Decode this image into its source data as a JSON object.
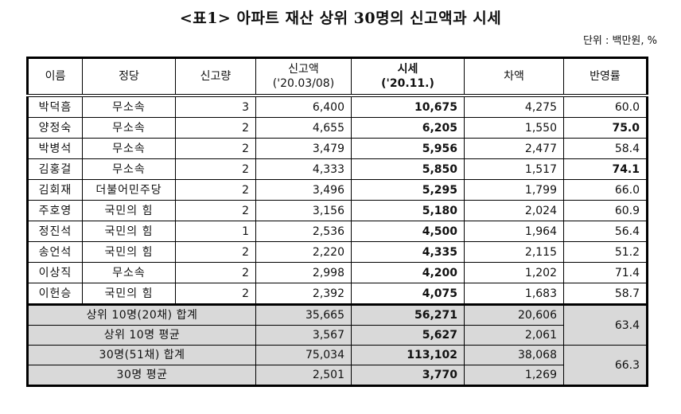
{
  "title": "<표1> 아파트 재산 상위 30명의 신고액과 시세",
  "unit": "단위 : 백만원, %",
  "table": {
    "headers": {
      "name": "이름",
      "party": "정당",
      "count": "신고량",
      "declared_line1": "신고액",
      "declared_line2": "('20.03/08)",
      "market_line1": "시세",
      "market_line2": "('20.11.)",
      "diff": "차액",
      "ratio": "반영률"
    },
    "rows": [
      {
        "name": "박덕흠",
        "party": "무소속",
        "count": "3",
        "declared": "6,400",
        "market": "10,675",
        "diff": "4,275",
        "ratio": "60.0",
        "ratio_bold": false
      },
      {
        "name": "양정숙",
        "party": "무소속",
        "count": "2",
        "declared": "4,655",
        "market": "6,205",
        "diff": "1,550",
        "ratio": "75.0",
        "ratio_bold": true
      },
      {
        "name": "박병석",
        "party": "무소속",
        "count": "2",
        "declared": "3,479",
        "market": "5,956",
        "diff": "2,477",
        "ratio": "58.4",
        "ratio_bold": false
      },
      {
        "name": "김홍걸",
        "party": "무소속",
        "count": "2",
        "declared": "4,333",
        "market": "5,850",
        "diff": "1,517",
        "ratio": "74.1",
        "ratio_bold": true
      },
      {
        "name": "김회재",
        "party": "더불어민주당",
        "count": "2",
        "declared": "3,496",
        "market": "5,295",
        "diff": "1,799",
        "ratio": "66.0",
        "ratio_bold": false
      },
      {
        "name": "주호영",
        "party": "국민의 힘",
        "count": "2",
        "declared": "3,156",
        "market": "5,180",
        "diff": "2,024",
        "ratio": "60.9",
        "ratio_bold": false
      },
      {
        "name": "정진석",
        "party": "국민의 힘",
        "count": "1",
        "declared": "2,536",
        "market": "4,500",
        "diff": "1,964",
        "ratio": "56.4",
        "ratio_bold": false
      },
      {
        "name": "송언석",
        "party": "국민의 힘",
        "count": "2",
        "declared": "2,220",
        "market": "4,335",
        "diff": "2,115",
        "ratio": "51.2",
        "ratio_bold": false
      },
      {
        "name": "이상직",
        "party": "무소속",
        "count": "2",
        "declared": "2,998",
        "market": "4,200",
        "diff": "1,202",
        "ratio": "71.4",
        "ratio_bold": false
      },
      {
        "name": "이헌승",
        "party": "국민의 힘",
        "count": "2",
        "declared": "2,392",
        "market": "4,075",
        "diff": "1,683",
        "ratio": "58.7",
        "ratio_bold": false
      }
    ],
    "summary": [
      {
        "label": "상위 10명(20채) 합계",
        "declared": "35,665",
        "market": "56,271",
        "diff": "20,606"
      },
      {
        "label": "상위 10명 평균",
        "declared": "3,567",
        "market": "5,627",
        "diff": "2,061"
      },
      {
        "label": "30명(51채) 합계",
        "declared": "75,034",
        "market": "113,102",
        "diff": "38,068"
      },
      {
        "label": "30명 평균",
        "declared": "2,501",
        "market": "3,770",
        "diff": "1,269"
      }
    ],
    "summary_ratios": {
      "top10": "63.4",
      "all30": "66.3"
    }
  }
}
